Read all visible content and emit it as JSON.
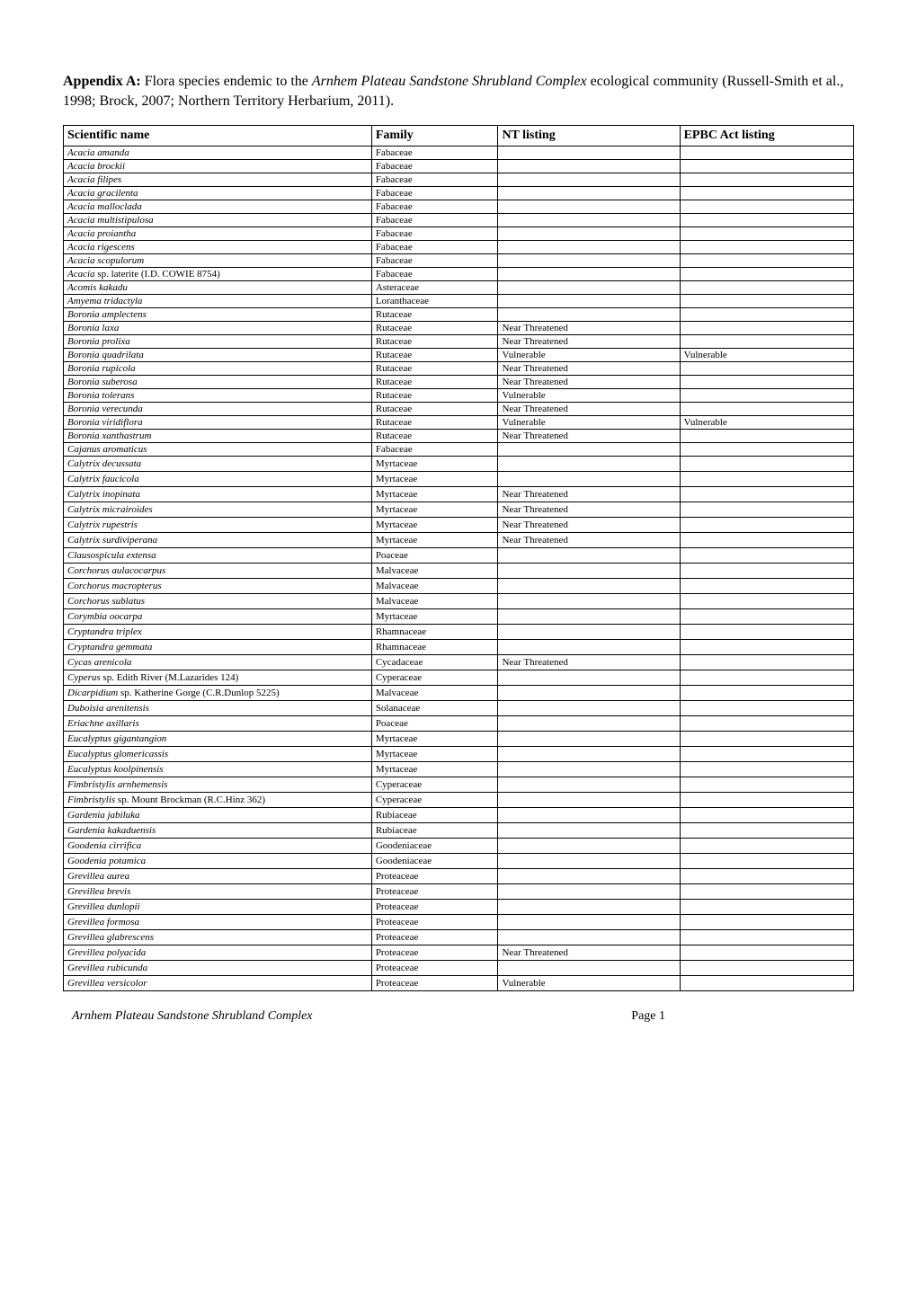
{
  "intro": {
    "appendix_label": "Appendix A:",
    "text_before_italic": " Flora species endemic to the ",
    "italic_name": "Arnhem Plateau Sandstone Shrubland Complex",
    "text_after_italic": " ecological community (Russell-Smith et al., 1998; Brock, 2007; Northern Territory Herbarium, 2011)."
  },
  "table": {
    "headers": {
      "scientific_name": "Scientific name",
      "family": "Family",
      "nt_listing": "NT listing",
      "epbc_listing": "EPBC Act listing"
    },
    "rows": [
      {
        "name_italic": "Acacia amanda",
        "name_plain": "",
        "family": "Fabaceae",
        "nt": "",
        "epbc": "",
        "tall": false
      },
      {
        "name_italic": "Acacia brockii",
        "name_plain": "",
        "family": "Fabaceae",
        "nt": "",
        "epbc": "",
        "tall": false
      },
      {
        "name_italic": "Acacia filipes",
        "name_plain": "",
        "family": "Fabaceae",
        "nt": "",
        "epbc": "",
        "tall": false
      },
      {
        "name_italic": "Acacia gracilenta",
        "name_plain": "",
        "family": "Fabaceae",
        "nt": "",
        "epbc": "",
        "tall": false
      },
      {
        "name_italic": "Acacia malloclada",
        "name_plain": "",
        "family": "Fabaceae",
        "nt": "",
        "epbc": "",
        "tall": false
      },
      {
        "name_italic": "Acacia multistipulosa",
        "name_plain": "",
        "family": "Fabaceae",
        "nt": "",
        "epbc": "",
        "tall": false
      },
      {
        "name_italic": "Acacia proiantha",
        "name_plain": "",
        "family": "Fabaceae",
        "nt": "",
        "epbc": "",
        "tall": false
      },
      {
        "name_italic": "Acacia rigescens",
        "name_plain": "",
        "family": "Fabaceae",
        "nt": "",
        "epbc": "",
        "tall": false
      },
      {
        "name_italic": "Acacia scopulorum",
        "name_plain": "",
        "family": "Fabaceae",
        "nt": "",
        "epbc": "",
        "tall": false
      },
      {
        "name_italic": "Acacia",
        "name_plain": " sp. laterite (I.D. COWIE 8754)",
        "family": "Fabaceae",
        "nt": "",
        "epbc": "",
        "tall": false
      },
      {
        "name_italic": "Acomis kakadu",
        "name_plain": "",
        "family": "Asteraceae",
        "nt": "",
        "epbc": "",
        "tall": false
      },
      {
        "name_italic": "Amyema tridactyla",
        "name_plain": "",
        "family": "Loranthaceae",
        "nt": "",
        "epbc": "",
        "tall": false
      },
      {
        "name_italic": "Boronia amplectens",
        "name_plain": "",
        "family": "Rutaceae",
        "nt": "",
        "epbc": "",
        "tall": false
      },
      {
        "name_italic": "Boronia laxa",
        "name_plain": "",
        "family": "Rutaceae",
        "nt": "Near Threatened",
        "epbc": "",
        "tall": false
      },
      {
        "name_italic": "Boronia prolixa",
        "name_plain": "",
        "family": "Rutaceae",
        "nt": "Near Threatened",
        "epbc": "",
        "tall": false
      },
      {
        "name_italic": "Boronia quadrilata",
        "name_plain": "",
        "family": "Rutaceae",
        "nt": "Vulnerable",
        "epbc": "Vulnerable",
        "tall": false
      },
      {
        "name_italic": "Boronia rupicola",
        "name_plain": "",
        "family": "Rutaceae",
        "nt": "Near Threatened",
        "epbc": "",
        "tall": false
      },
      {
        "name_italic": "Boronia suberosa",
        "name_plain": "",
        "family": "Rutaceae",
        "nt": "Near Threatened",
        "epbc": "",
        "tall": false
      },
      {
        "name_italic": "Boronia tolerans",
        "name_plain": "",
        "family": "Rutaceae",
        "nt": "Vulnerable",
        "epbc": "",
        "tall": false
      },
      {
        "name_italic": "Boronia verecunda",
        "name_plain": "",
        "family": "Rutaceae",
        "nt": "Near Threatened",
        "epbc": "",
        "tall": false
      },
      {
        "name_italic": "Boronia viridiflora",
        "name_plain": "",
        "family": "Rutaceae",
        "nt": "Vulnerable",
        "epbc": "Vulnerable",
        "tall": false
      },
      {
        "name_italic": "Boronia xanthastrum",
        "name_plain": "",
        "family": "Rutaceae",
        "nt": "Near Threatened",
        "epbc": "",
        "tall": false
      },
      {
        "name_italic": "Cajanus aromaticus",
        "name_plain": "",
        "family": "Fabaceae",
        "nt": "",
        "epbc": "",
        "tall": false
      },
      {
        "name_italic": "Calytrix decussata",
        "name_plain": "",
        "family": "Myrtaceae",
        "nt": "",
        "epbc": "",
        "tall": true
      },
      {
        "name_italic": "Calytrix faucicola",
        "name_plain": "",
        "family": "Myrtaceae",
        "nt": "",
        "epbc": "",
        "tall": true
      },
      {
        "name_italic": "Calytrix inopinata",
        "name_plain": "",
        "family": "Myrtaceae",
        "nt": "Near Threatened",
        "epbc": "",
        "tall": true
      },
      {
        "name_italic": "Calytrix micrairoides",
        "name_plain": "",
        "family": "Myrtaceae",
        "nt": "Near Threatened",
        "epbc": "",
        "tall": true
      },
      {
        "name_italic": "Calytrix rupestris",
        "name_plain": "",
        "family": "Myrtaceae",
        "nt": "Near Threatened",
        "epbc": "",
        "tall": true
      },
      {
        "name_italic": "Calytrix surdiviperana",
        "name_plain": "",
        "family": "Myrtaceae",
        "nt": "Near Threatened",
        "epbc": "",
        "tall": true
      },
      {
        "name_italic": "Clausospicula extensa",
        "name_plain": "",
        "family": "Poaceae",
        "nt": "",
        "epbc": "",
        "tall": true
      },
      {
        "name_italic": "Corchorus aulacocarpus",
        "name_plain": "",
        "family": "Malvaceae",
        "nt": "",
        "epbc": "",
        "tall": true
      },
      {
        "name_italic": "Corchorus macropterus",
        "name_plain": "",
        "family": "Malvaceae",
        "nt": "",
        "epbc": "",
        "tall": true
      },
      {
        "name_italic": "Corchorus sublatus",
        "name_plain": "",
        "family": "Malvaceae",
        "nt": "",
        "epbc": "",
        "tall": true
      },
      {
        "name_italic": "Corymbia oocarpa",
        "name_plain": "",
        "family": "Myrtaceae",
        "nt": "",
        "epbc": "",
        "tall": true
      },
      {
        "name_italic": "Cryptandra triplex",
        "name_plain": "",
        "family": "Rhamnaceae",
        "nt": "",
        "epbc": "",
        "tall": true
      },
      {
        "name_italic": "Cryptandra gemmata",
        "name_plain": "",
        "family": "Rhamnaceae",
        "nt": "",
        "epbc": "",
        "tall": true
      },
      {
        "name_italic": "Cycas arenicola",
        "name_plain": "",
        "family": "Cycadaceae",
        "nt": "Near Threatened",
        "epbc": "",
        "tall": true
      },
      {
        "name_italic": "Cyperus",
        "name_plain": " sp. Edith River (M.Lazarides 124)",
        "family": "Cyperaceae",
        "nt": "",
        "epbc": "",
        "tall": true
      },
      {
        "name_italic": "Dicarpidium",
        "name_plain": " sp. Katherine Gorge (C.R.Dunlop 5225)",
        "family": "Malvaceae",
        "nt": "",
        "epbc": "",
        "tall": true
      },
      {
        "name_italic": "Duboisia arenitensis",
        "name_plain": "",
        "family": "Solanaceae",
        "nt": "",
        "epbc": "",
        "tall": true
      },
      {
        "name_italic": "Eriachne axillaris",
        "name_plain": "",
        "family": "Poaceae",
        "nt": "",
        "epbc": "",
        "tall": true
      },
      {
        "name_italic": "Eucalyptus gigantangion",
        "name_plain": "",
        "family": "Myrtaceae",
        "nt": "",
        "epbc": "",
        "tall": true
      },
      {
        "name_italic": "Eucalyptus glomericassis",
        "name_plain": "",
        "family": "Myrtaceae",
        "nt": "",
        "epbc": "",
        "tall": true
      },
      {
        "name_italic": "Eucalyptus koolpinensis",
        "name_plain": "",
        "family": "Myrtaceae",
        "nt": "",
        "epbc": "",
        "tall": true
      },
      {
        "name_italic": "Fimbristylis arnhemensis",
        "name_plain": "",
        "family": "Cyperaceae",
        "nt": "",
        "epbc": "",
        "tall": true
      },
      {
        "name_italic": "Fimbristylis",
        "name_plain": " sp. Mount Brockman (R.C.Hinz 362)",
        "family": "Cyperaceae",
        "nt": "",
        "epbc": "",
        "tall": true
      },
      {
        "name_italic": "Gardenia jabiluka",
        "name_plain": "",
        "family": "Rubiaceae",
        "nt": "",
        "epbc": "",
        "tall": true
      },
      {
        "name_italic": "Gardenia kakaduensis",
        "name_plain": "",
        "family": "Rubiaceae",
        "nt": "",
        "epbc": "",
        "tall": true
      },
      {
        "name_italic": "Goodenia cirrifica",
        "name_plain": "",
        "family": "Goodeniaceae",
        "nt": "",
        "epbc": "",
        "tall": true
      },
      {
        "name_italic": "Goodenia potamica",
        "name_plain": "",
        "family": "Goodeniaceae",
        "nt": "",
        "epbc": "",
        "tall": true
      },
      {
        "name_italic": "Grevillea aurea",
        "name_plain": "",
        "family": "Proteaceae",
        "nt": "",
        "epbc": "",
        "tall": true
      },
      {
        "name_italic": "Grevillea brevis",
        "name_plain": "",
        "family": "Proteaceae",
        "nt": "",
        "epbc": "",
        "tall": true
      },
      {
        "name_italic": "Grevillea dunlopii",
        "name_plain": "",
        "family": "Proteaceae",
        "nt": "",
        "epbc": "",
        "tall": true
      },
      {
        "name_italic": "Grevillea formosa",
        "name_plain": "",
        "family": "Proteaceae",
        "nt": "",
        "epbc": "",
        "tall": true
      },
      {
        "name_italic": "Grevillea glabrescens",
        "name_plain": "",
        "family": "Proteaceae",
        "nt": "",
        "epbc": "",
        "tall": true
      },
      {
        "name_italic": "Grevillea polyacida",
        "name_plain": "",
        "family": "Proteaceae",
        "nt": "Near Threatened",
        "epbc": "",
        "tall": true
      },
      {
        "name_italic": "Grevillea rubicunda",
        "name_plain": "",
        "family": "Proteaceae",
        "nt": "",
        "epbc": "",
        "tall": true
      },
      {
        "name_italic": "Grevillea versicolor",
        "name_plain": "",
        "family": "Proteaceae",
        "nt": "Vulnerable",
        "epbc": "",
        "tall": true
      }
    ]
  },
  "footer": {
    "left": "Arnhem Plateau Sandstone Shrubland Complex",
    "right": "Page 1"
  }
}
